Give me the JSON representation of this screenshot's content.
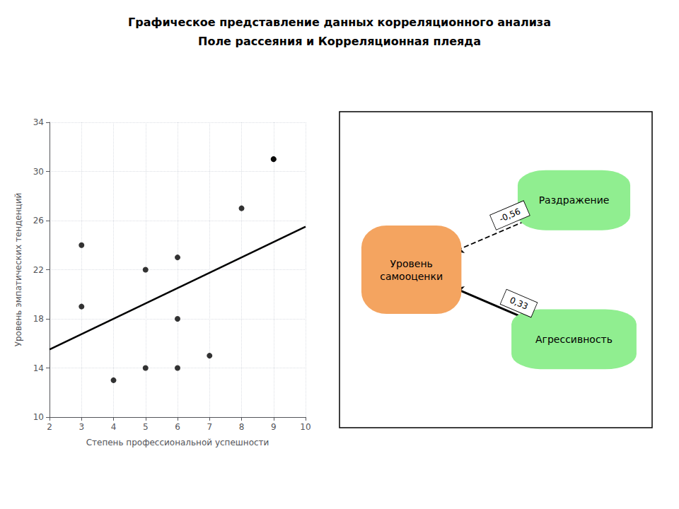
{
  "chart_data": [
    {
      "type": "scatter",
      "title": "Графическое представление данных корреляционного анализа",
      "subtitle": "Поле рассеяния и Корреляционная плеяда",
      "series": [
        {
          "type": "scatter",
          "color": "#000000",
          "x": [
            3,
            3,
            4,
            5,
            5,
            6,
            6,
            6,
            7,
            8,
            9,
            9
          ],
          "values": [
            19,
            24,
            13,
            22,
            14,
            23,
            18,
            14,
            15,
            27,
            31,
            31
          ]
        },
        {
          "type": "line",
          "color": "#000000",
          "x": [
            2,
            10
          ],
          "values": [
            15.5,
            25.5
          ]
        }
      ],
      "xlabel": "Степень профессиональной успешности",
      "ylabel": "Уровень эмпатических тенденций",
      "xlim": [
        2,
        10
      ],
      "ylim": [
        10,
        34
      ],
      "xticks": [
        2,
        3,
        4,
        5,
        6,
        7,
        8,
        9,
        10
      ],
      "yticks": [
        10,
        14,
        18,
        22,
        26,
        30,
        34
      ],
      "grid": true
    },
    {
      "type": "graph",
      "nodes": [
        {
          "name": "Уровень\nсамооценки",
          "color": "#F4A460"
        },
        {
          "name": "Раздражение",
          "color": "#90EE90"
        },
        {
          "name": "Агрессивность",
          "color": "#90EE90"
        }
      ],
      "links": [
        {
          "source": "Раздражение",
          "target": "Уровень\nсамооценки",
          "value": -0.56,
          "value_label": "-0,56",
          "line_style": "dashed",
          "color": "#000000"
        },
        {
          "source": "Агрессивность",
          "target": "Уровень\nсамооценки",
          "value": 0.33,
          "value_label": "0,33",
          "line_style": "solid",
          "color": "#000000"
        }
      ]
    }
  ]
}
